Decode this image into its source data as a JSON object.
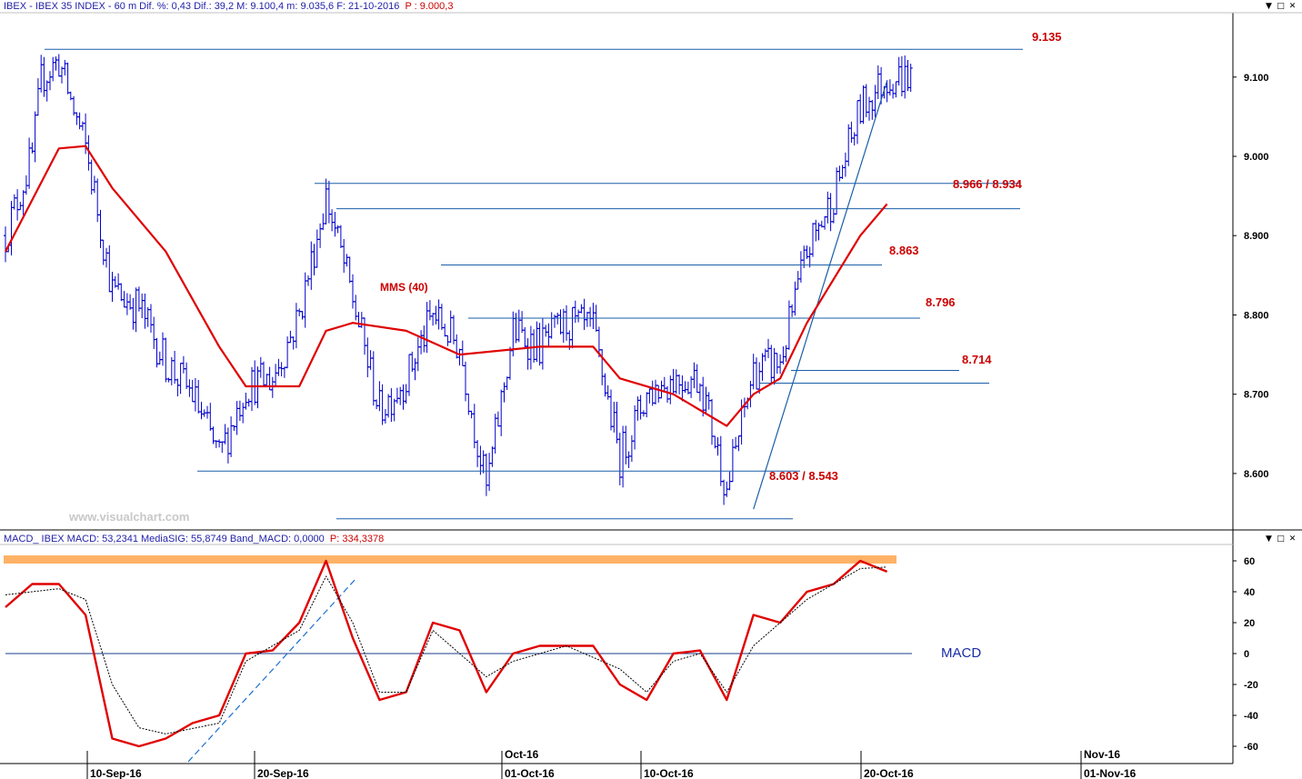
{
  "price_panel": {
    "title_main": "IBEX - IBEX 35 INDEX -  60 m  Dif. %: 0,43  Dif.: 39,2  M: 9.100,4  m: 9.035,6  F: 21-10-2016",
    "title_p": "P : 9.000,3",
    "watermark": "www.visualchart.com",
    "ma_label": "MMS (40)",
    "level_labels": [
      "9.135",
      "8.966 / 8.934",
      "8.863",
      "8.796",
      "8.714",
      "8.603 / 8.543"
    ]
  },
  "macd_panel": {
    "title_main": "MACD_ IBEX MACD: 53,2341  MediaSIG: 55,8749  Band_MACD: 0,0000",
    "title_p": "P: 334,3378",
    "label": "MACD"
  },
  "x_axis": {
    "month_labels": [
      "Oct-16",
      "Nov-16"
    ],
    "date_labels": [
      "10-Sep-16",
      "20-Sep-16",
      "01-Oct-16",
      "10-Oct-16",
      "20-Oct-16",
      "01-Nov-16"
    ]
  },
  "window_controls": {
    "minimize": "▼",
    "maximize": "□",
    "close": "✕"
  },
  "colors": {
    "bars": "#0000cc",
    "moving_average": "#e00000",
    "levels": "#1a5fa8",
    "label_red": "#cc0000",
    "macd": "#e00000",
    "signal": "#000000",
    "band_highlight": "#ffb266"
  },
  "chart_data": [
    {
      "type": "candlestick",
      "title": "IBEX - IBEX 35 INDEX - 60 m",
      "ylim": [
        8530,
        9180
      ],
      "y_ticks": [
        8600,
        8700,
        8800,
        8900,
        9000,
        9100
      ],
      "y_tick_labels": [
        "8.600",
        "8.700",
        "8.800",
        "8.900",
        "9.000",
        "9.100"
      ],
      "grid": false,
      "close_path": [
        [
          "06-Sep-16",
          8900
        ],
        [
          "07-Sep-16",
          9000
        ],
        [
          "07-Sep-16 12:00",
          9100
        ],
        [
          "08-Sep-16",
          9120
        ],
        [
          "08-Sep-16 12:00",
          9080
        ],
        [
          "09-Sep-16",
          9010
        ],
        [
          "09-Sep-16 12:00",
          8950
        ],
        [
          "12-Sep-16",
          8830
        ],
        [
          "13-Sep-16",
          8810
        ],
        [
          "14-Sep-16",
          8740
        ],
        [
          "15-Sep-16",
          8700
        ],
        [
          "16-Sep-16",
          8620
        ],
        [
          "19-Sep-16",
          8710
        ],
        [
          "20-Sep-16",
          8720
        ],
        [
          "21-Sep-16",
          8800
        ],
        [
          "22-Sep-16",
          8950
        ],
        [
          "23-Sep-16",
          8820
        ],
        [
          "26-Sep-16",
          8680
        ],
        [
          "27-Sep-16",
          8720
        ],
        [
          "28-Sep-16",
          8800
        ],
        [
          "29-Sep-16",
          8760
        ],
        [
          "30-Sep-16",
          8580
        ],
        [
          "03-Oct-16",
          8780
        ],
        [
          "04-Oct-16",
          8760
        ],
        [
          "05-Oct-16",
          8790
        ],
        [
          "06-Oct-16",
          8780
        ],
        [
          "07-Oct-16",
          8620
        ],
        [
          "10-Oct-16",
          8700
        ],
        [
          "11-Oct-16",
          8720
        ],
        [
          "12-Oct-16",
          8720
        ],
        [
          "13-Oct-16",
          8580
        ],
        [
          "14-Oct-16",
          8730
        ],
        [
          "17-Oct-16",
          8740
        ],
        [
          "18-Oct-16",
          8880
        ],
        [
          "19-Oct-16",
          8950
        ],
        [
          "20-Oct-16",
          9060
        ],
        [
          "21-Oct-16",
          9100
        ]
      ],
      "moving_average": {
        "name": "MMS (40)",
        "path": [
          [
            "06-Sep-16",
            8880
          ],
          [
            "08-Sep-16",
            9010
          ],
          [
            "09-Sep-16",
            9013
          ],
          [
            "12-Sep-16",
            8960
          ],
          [
            "14-Sep-16",
            8880
          ],
          [
            "16-Sep-16",
            8760
          ],
          [
            "19-Sep-16",
            8710
          ],
          [
            "21-Sep-16",
            8710
          ],
          [
            "22-Sep-16",
            8780
          ],
          [
            "23-Sep-16",
            8790
          ],
          [
            "27-Sep-16",
            8780
          ],
          [
            "29-Sep-16",
            8750
          ],
          [
            "04-Oct-16",
            8760
          ],
          [
            "06-Oct-16",
            8760
          ],
          [
            "07-Oct-16",
            8720
          ],
          [
            "11-Oct-16",
            8700
          ],
          [
            "13-Oct-16",
            8660
          ],
          [
            "14-Oct-16",
            8700
          ],
          [
            "17-Oct-16",
            8720
          ],
          [
            "18-Oct-16",
            8790
          ],
          [
            "20-Oct-16",
            8900
          ],
          [
            "21-Oct-16",
            8940
          ]
        ]
      },
      "levels": [
        {
          "value": 9135,
          "label": "9.135"
        },
        {
          "value": 8966,
          "label": "8.966 / 8.934"
        },
        {
          "value": 8934,
          "label": "8.966 / 8.934"
        },
        {
          "value": 8863,
          "label": "8.863"
        },
        {
          "value": 8796,
          "label": "8.796"
        },
        {
          "value": 8730,
          "label": "8.714"
        },
        {
          "value": 8714,
          "label": "8.714"
        },
        {
          "value": 8603,
          "label": "8.603 / 8.543"
        },
        {
          "value": 8543,
          "label": "8.603 / 8.543"
        }
      ],
      "trendline": {
        "from": [
          "14-Oct-16",
          8555
        ],
        "to": [
          "21-Oct-16",
          9095
        ]
      }
    },
    {
      "type": "line",
      "title": "MACD_ IBEX",
      "ylim": [
        -70,
        70
      ],
      "y_ticks": [
        -60,
        -40,
        -20,
        0,
        20,
        40,
        60
      ],
      "y_tick_labels": [
        "-60",
        "-40",
        "-20",
        "0",
        "20",
        "40",
        "60"
      ],
      "zero_line": 0,
      "band_highlight": 60,
      "series": [
        {
          "name": "MACD",
          "values": [
            [
              "06-Sep-16",
              30
            ],
            [
              "07-Sep-16",
              45
            ],
            [
              "08-Sep-16",
              45
            ],
            [
              "09-Sep-16",
              25
            ],
            [
              "12-Sep-16",
              -55
            ],
            [
              "13-Sep-16",
              -60
            ],
            [
              "14-Sep-16",
              -55
            ],
            [
              "15-Sep-16",
              -45
            ],
            [
              "16-Sep-16",
              -40
            ],
            [
              "19-Sep-16",
              0
            ],
            [
              "20-Sep-16",
              2
            ],
            [
              "21-Sep-16",
              20
            ],
            [
              "22-Sep-16",
              60
            ],
            [
              "23-Sep-16",
              10
            ],
            [
              "26-Sep-16",
              -30
            ],
            [
              "27-Sep-16",
              -25
            ],
            [
              "28-Sep-16",
              20
            ],
            [
              "29-Sep-16",
              15
            ],
            [
              "30-Sep-16",
              -25
            ],
            [
              "03-Oct-16",
              0
            ],
            [
              "04-Oct-16",
              5
            ],
            [
              "05-Oct-16",
              5
            ],
            [
              "06-Oct-16",
              5
            ],
            [
              "07-Oct-16",
              -20
            ],
            [
              "10-Oct-16",
              -30
            ],
            [
              "11-Oct-16",
              0
            ],
            [
              "12-Oct-16",
              2
            ],
            [
              "13-Oct-16",
              -30
            ],
            [
              "14-Oct-16",
              25
            ],
            [
              "17-Oct-16",
              20
            ],
            [
              "18-Oct-16",
              40
            ],
            [
              "19-Oct-16",
              45
            ],
            [
              "20-Oct-16",
              60
            ],
            [
              "21-Oct-16",
              53
            ]
          ]
        },
        {
          "name": "MediaSIG",
          "values": [
            [
              "06-Sep-16",
              38
            ],
            [
              "08-Sep-16",
              42
            ],
            [
              "09-Sep-16",
              35
            ],
            [
              "12-Sep-16",
              -20
            ],
            [
              "13-Sep-16",
              -48
            ],
            [
              "14-Sep-16",
              -52
            ],
            [
              "16-Sep-16",
              -45
            ],
            [
              "19-Sep-16",
              -5
            ],
            [
              "21-Sep-16",
              15
            ],
            [
              "22-Sep-16",
              50
            ],
            [
              "23-Sep-16",
              20
            ],
            [
              "26-Sep-16",
              -25
            ],
            [
              "27-Sep-16",
              -25
            ],
            [
              "28-Sep-16",
              15
            ],
            [
              "30-Sep-16",
              -15
            ],
            [
              "03-Oct-16",
              -5
            ],
            [
              "05-Oct-16",
              5
            ],
            [
              "07-Oct-16",
              -10
            ],
            [
              "10-Oct-16",
              -25
            ],
            [
              "11-Oct-16",
              -5
            ],
            [
              "12-Oct-16",
              0
            ],
            [
              "13-Oct-16",
              -25
            ],
            [
              "14-Oct-16",
              5
            ],
            [
              "17-Oct-16",
              20
            ],
            [
              "18-Oct-16",
              35
            ],
            [
              "20-Oct-16",
              55
            ],
            [
              "21-Oct-16",
              56
            ]
          ]
        }
      ]
    }
  ]
}
